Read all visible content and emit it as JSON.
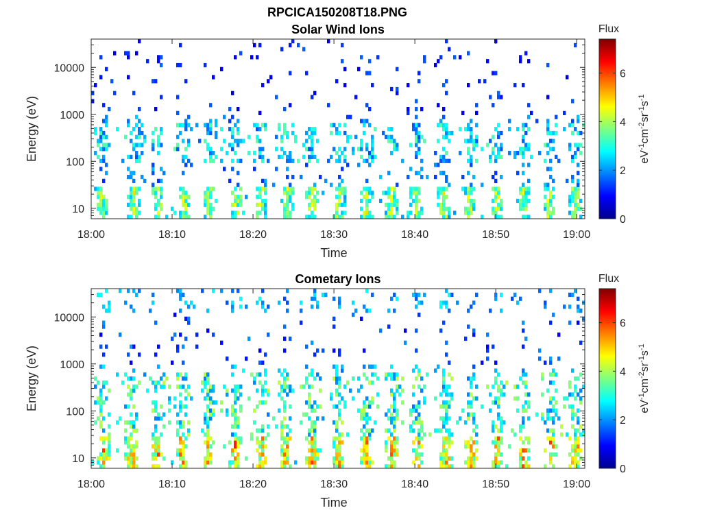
{
  "figure_title": "RPCICA150208T18.PNG",
  "chart_data": [
    {
      "type": "heatmap",
      "title": "Solar Wind Ions",
      "xlabel": "Time",
      "ylabel": "Energy (eV)",
      "xticks": [
        "18:00",
        "18:10",
        "18:20",
        "18:30",
        "18:40",
        "18:50",
        "19:00"
      ],
      "xlim": [
        "18:00",
        "19:01"
      ],
      "yscale": "log",
      "ylim": [
        6,
        40000
      ],
      "yticks": [
        10,
        100,
        1000,
        10000
      ],
      "yticklabels": [
        "10",
        "100",
        "1000",
        "10000"
      ],
      "colorbar": {
        "label": "Flux",
        "units": "eV-1cm-2sr-1s-1",
        "min": 0,
        "max": 7.4,
        "ticks": [
          0,
          2,
          4,
          6
        ],
        "colormap": "jet"
      },
      "bursts_minutes": [
        1.2,
        5.3,
        8.2,
        11.5,
        14.6,
        17.9,
        21.0,
        24.2,
        27.3,
        30.6,
        34.1,
        37.1,
        40.2,
        43.5,
        46.8,
        50.2,
        53.4,
        56.6,
        59.8
      ],
      "features": {
        "low_energy_band_eV": [
          6,
          30
        ],
        "low_energy_flux_peak": 5.0,
        "mid_energy_band_eV": [
          100,
          600
        ],
        "mid_energy_flux_typical": 2.5,
        "high_energy_sparse_eV": [
          1000,
          40000
        ],
        "high_energy_flux_typical": 1.2
      }
    },
    {
      "type": "heatmap",
      "title": "Cometary Ions",
      "xlabel": "Time",
      "ylabel": "Energy (eV)",
      "xticks": [
        "18:00",
        "18:10",
        "18:20",
        "18:30",
        "18:40",
        "18:50",
        "19:00"
      ],
      "xlim": [
        "18:00",
        "19:01"
      ],
      "yscale": "log",
      "ylim": [
        6,
        40000
      ],
      "yticks": [
        10,
        100,
        1000,
        10000
      ],
      "yticklabels": [
        "10",
        "100",
        "1000",
        "10000"
      ],
      "colorbar": {
        "label": "Flux",
        "units": "eV-1cm-2sr-1s-1",
        "min": 0,
        "max": 7.4,
        "ticks": [
          0,
          2,
          4,
          6
        ],
        "colormap": "jet"
      },
      "bursts_minutes": [
        1.5,
        5.0,
        8.2,
        11.2,
        14.5,
        17.8,
        21.0,
        24.0,
        27.3,
        30.6,
        34.0,
        37.2,
        40.4,
        43.8,
        47.0,
        50.2,
        53.5,
        56.8,
        59.9
      ],
      "features": {
        "low_energy_band_eV": [
          6,
          30
        ],
        "low_energy_flux_peak": 6.3,
        "mid_energy_band_eV": [
          30,
          600
        ],
        "mid_energy_flux_typical": 3.0,
        "high_energy_sparse_eV": [
          1000,
          12000
        ],
        "high_energy_flux_typical": 1.5
      }
    }
  ]
}
